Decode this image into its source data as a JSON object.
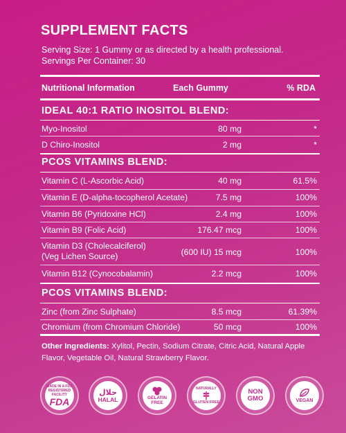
{
  "title": "SUPPLEMENT FACTS",
  "serving_size": "Serving Size: 1 Gummy or as directed by a health professional.",
  "servings_per_container": "Servings Per Container: 30",
  "header": {
    "col1": "Nutritional Information",
    "col2": "Each Gummy",
    "col3": "% RDA"
  },
  "sections": [
    {
      "title": "IDEAL 40:1 RATIO INOSITOL BLEND:",
      "rows": [
        {
          "name": "Myo-Inositol",
          "amount": "80 mg",
          "rda": "*"
        },
        {
          "name": "D Chiro-Inositol",
          "amount": "2 mg",
          "rda": "*"
        }
      ]
    },
    {
      "title": "PCOS VITAMINS BLEND:",
      "rows": [
        {
          "name": "Vitamin C (L-Ascorbic Acid)",
          "amount": "40 mg",
          "rda": "61.5%"
        },
        {
          "name": "Vitamin E (D-alpha-tocopherol Acetate)",
          "amount": "7.5 mg",
          "rda": "100%"
        },
        {
          "name": "Vitamin B6 (Pyridoxine HCl)",
          "amount": "2.4 mg",
          "rda": "100%"
        },
        {
          "name": "Vitamin B9 (Folic Acid)",
          "amount": "176.47 mcg",
          "rda": "100%"
        },
        {
          "name": "Vitamin D3 (Cholecalciferol)",
          "name2": "(Veg Lichen Source)",
          "amount": "(600 IU) 15 mcg",
          "rda": "100%"
        },
        {
          "name": "Vitamin B12 (Cynocobalamin)",
          "amount": "2.2 mcg",
          "rda": "100%"
        }
      ]
    },
    {
      "title": "PCOS VITAMINS BLEND:",
      "rows": [
        {
          "name": "Zinc (from Zinc Sulphate)",
          "amount": "8.5 mcg",
          "rda": "61.39%"
        },
        {
          "name": "Chromium (from Chromium Chloride)",
          "amount": "50 mcg",
          "rda": "100%"
        }
      ]
    }
  ],
  "other_ingredients": {
    "label": "Other Ingredients:",
    "text": " Xylitol, Pectin, Sodium Citrate, Citric Acid, Natural Apple Flavor, Vegetable Oil, Natural Strawberry Flavor."
  },
  "badges": [
    {
      "icon": "fda-icon",
      "label": "FDA",
      "small": "MADE IN A FDA REGISTERED FACILITY"
    },
    {
      "icon": "halal-icon",
      "label": "HALAL",
      "small": "حلال"
    },
    {
      "icon": "gelatin-free-icon",
      "label": "GELATIN FREE",
      "small": ""
    },
    {
      "icon": "gluten-free-icon",
      "label": "GLUTEN FREE",
      "small": "NATURALLY"
    },
    {
      "icon": "non-gmo-icon",
      "label": "NON GMO",
      "small": ""
    },
    {
      "icon": "vegan-icon",
      "label": "VEGAN",
      "small": ""
    }
  ]
}
